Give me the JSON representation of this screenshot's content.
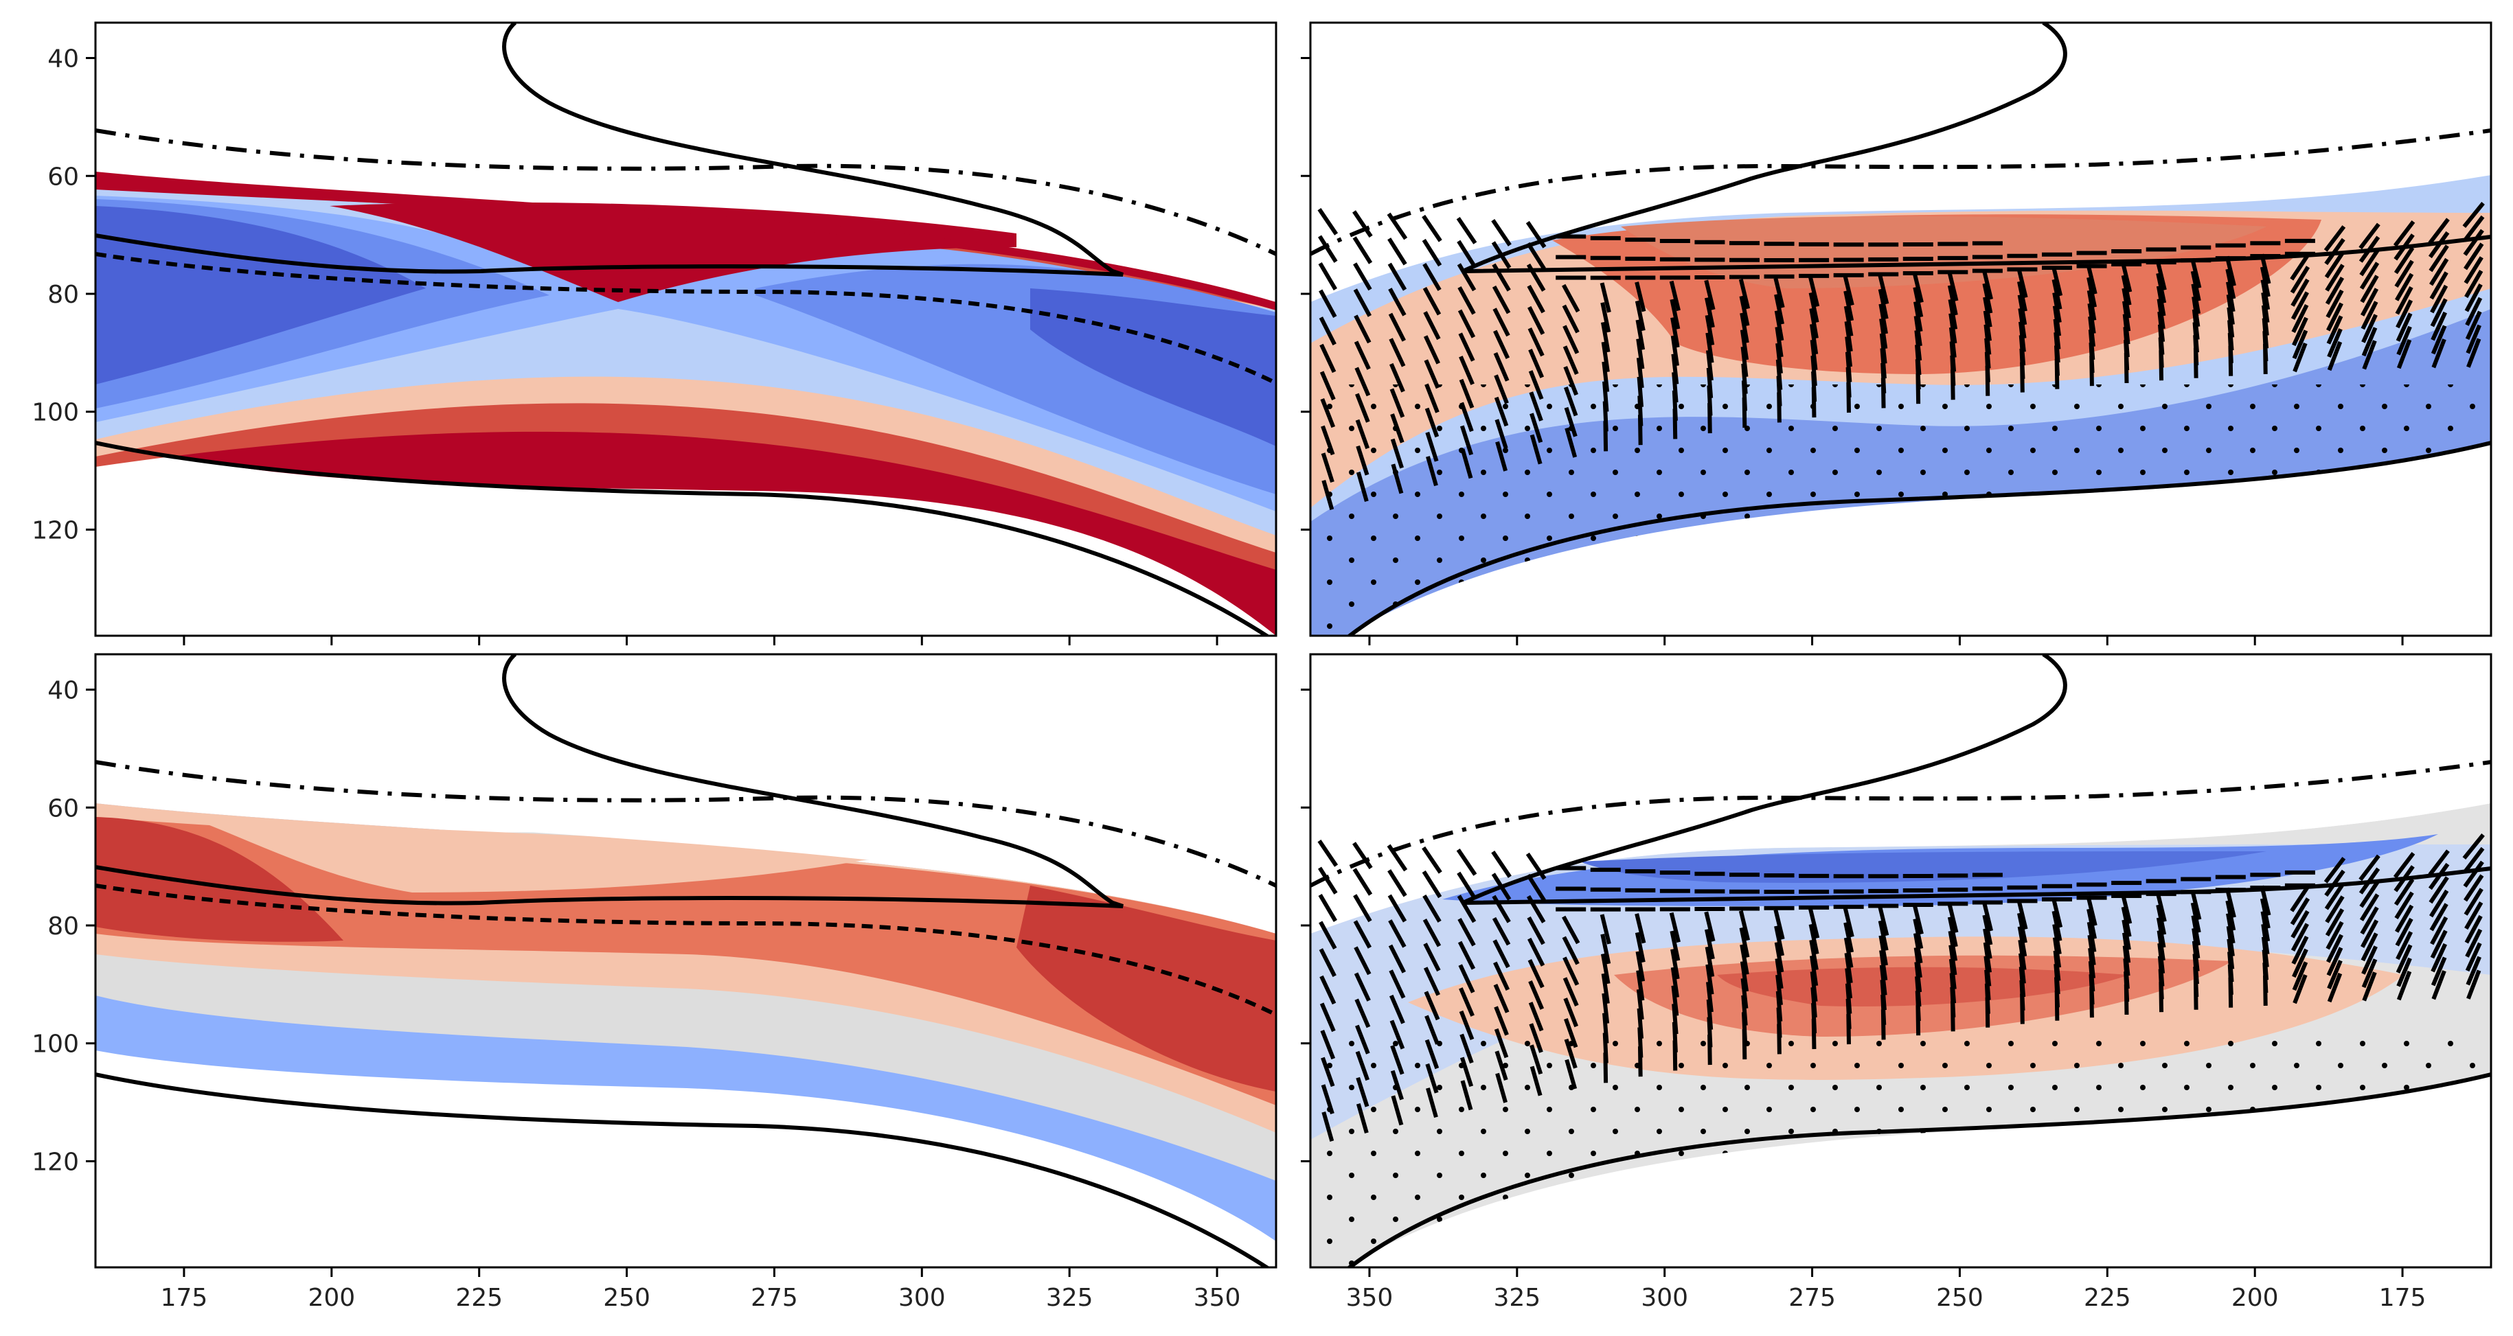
{
  "chart_data": [
    {
      "id": "top-left",
      "type": "filled-contour",
      "title": "",
      "xlabel": "",
      "ylabel": "",
      "x_ticks": [
        175,
        200,
        225,
        250,
        275,
        300,
        325,
        350
      ],
      "x_range": [
        160,
        360
      ],
      "x_reversed": false,
      "x_tick_labels_visible": false,
      "y_ticks": [
        40,
        60,
        80,
        100,
        120
      ],
      "y_range": [
        34,
        138
      ],
      "y_inverted": true,
      "y_tick_labels_visible": true,
      "overlay_lines": [
        "solid",
        "dashed",
        "dash-dot"
      ],
      "palette": "coolwarm",
      "stippling": false,
      "orientation_glyphs": false
    },
    {
      "id": "top-right",
      "type": "filled-contour",
      "title": "",
      "xlabel": "",
      "ylabel": "",
      "x_ticks": [
        350,
        325,
        300,
        275,
        250,
        225,
        200,
        175
      ],
      "x_range": [
        360,
        160
      ],
      "x_reversed": true,
      "x_tick_labels_visible": false,
      "y_ticks": [
        40,
        60,
        80,
        100,
        120
      ],
      "y_range": [
        34,
        138
      ],
      "y_inverted": true,
      "y_tick_labels_visible": false,
      "overlay_lines": [
        "solid",
        "dash-dot"
      ],
      "palette": "coolwarm",
      "stippling": true,
      "orientation_glyphs": true
    },
    {
      "id": "bottom-left",
      "type": "filled-contour",
      "title": "",
      "xlabel": "",
      "ylabel": "",
      "x_ticks": [
        175,
        200,
        225,
        250,
        275,
        300,
        325,
        350
      ],
      "x_range": [
        160,
        360
      ],
      "x_reversed": false,
      "x_tick_labels_visible": true,
      "y_ticks": [
        40,
        60,
        80,
        100,
        120
      ],
      "y_range": [
        34,
        138
      ],
      "y_inverted": true,
      "y_tick_labels_visible": true,
      "overlay_lines": [
        "solid",
        "dashed",
        "dash-dot"
      ],
      "palette": "coolwarm",
      "stippling": false,
      "orientation_glyphs": false
    },
    {
      "id": "bottom-right",
      "type": "filled-contour",
      "title": "",
      "xlabel": "",
      "ylabel": "",
      "x_ticks": [
        350,
        325,
        300,
        275,
        250,
        225,
        200,
        175
      ],
      "x_range": [
        360,
        160
      ],
      "x_reversed": true,
      "x_tick_labels_visible": true,
      "y_ticks": [
        40,
        60,
        80,
        100,
        120
      ],
      "y_range": [
        34,
        138
      ],
      "y_inverted": true,
      "y_tick_labels_visible": false,
      "overlay_lines": [
        "solid",
        "dash-dot"
      ],
      "palette": "coolwarm",
      "stippling": true,
      "orientation_glyphs": true
    }
  ],
  "colors": {
    "deep_red": "#b40426",
    "red": "#d44e41",
    "light_red": "#e7755b",
    "pale_red": "#f5c4ac",
    "neutral": "#dddddd",
    "pale_blue": "#b9d0f9",
    "light_blue": "#8db0fe",
    "blue": "#6b8df0",
    "deep_blue": "#3b4cc0",
    "line": "#000000"
  }
}
